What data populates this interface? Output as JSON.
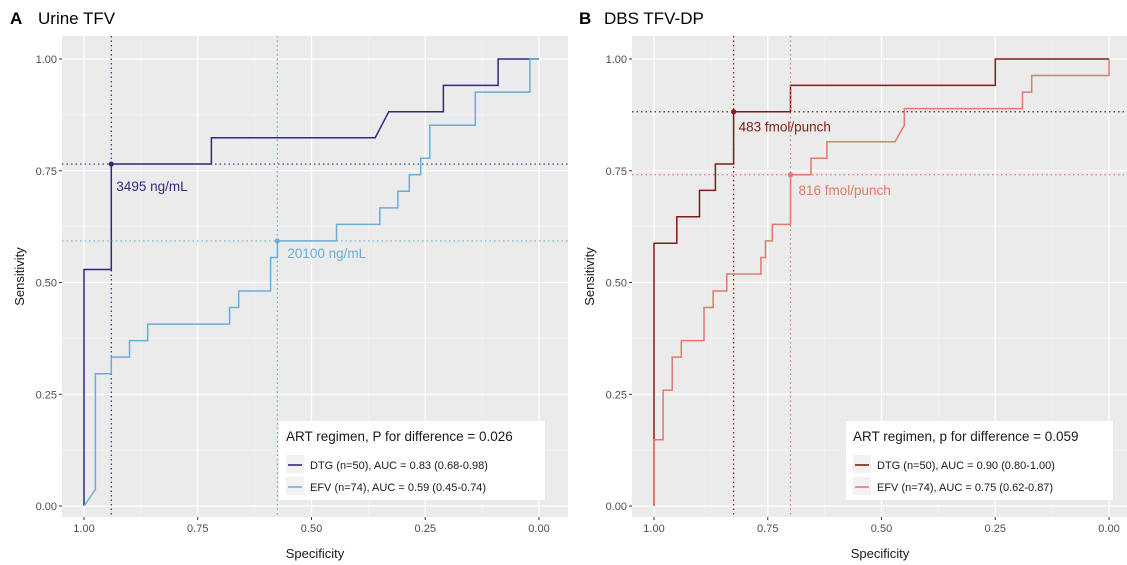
{
  "chart_data": [
    {
      "panel_letter": "A",
      "title": "Urine TFV",
      "type": "line",
      "xlabel": "Specificity",
      "ylabel": "Sensitivity",
      "x_reversed": true,
      "xlim": [
        1.0,
        0.0
      ],
      "ylim": [
        0.0,
        1.0
      ],
      "x_ticks": [
        "1.00",
        "0.75",
        "0.50",
        "0.25",
        "0.00"
      ],
      "y_ticks": [
        "0.00",
        "0.25",
        "0.50",
        "0.75",
        "1.00"
      ],
      "grid": true,
      "background": "#ebebeb",
      "legend": {
        "position": "bottom-right",
        "title": "ART regimen, P for difference = 0.026",
        "entries": [
          "DTG (n=50), AUC = 0.83 (0.68-0.98)",
          "EFV (n=74), AUC = 0.59 (0.45-0.74)"
        ]
      },
      "series": [
        {
          "name": "DTG (n=50), AUC = 0.83 (0.68-0.98)",
          "color": "#2e2a82",
          "points": [
            [
              1.0,
              0.0
            ],
            [
              1.0,
              0.529
            ],
            [
              0.94,
              0.529
            ],
            [
              0.94,
              0.765
            ],
            [
              0.72,
              0.765
            ],
            [
              0.72,
              0.824
            ],
            [
              0.36,
              0.824
            ],
            [
              0.33,
              0.882
            ],
            [
              0.21,
              0.882
            ],
            [
              0.21,
              0.941
            ],
            [
              0.09,
              0.941
            ],
            [
              0.09,
              1.0
            ],
            [
              0.0,
              1.0
            ]
          ],
          "cutoff": {
            "specificity": 0.94,
            "sensitivity": 0.765,
            "label": "3495 ng/mL"
          }
        },
        {
          "name": "EFV (n=74), AUC = 0.59 (0.45-0.74)",
          "color": "#6aaed6",
          "points": [
            [
              1.0,
              0.0
            ],
            [
              0.975,
              0.037
            ],
            [
              0.975,
              0.296
            ],
            [
              0.94,
              0.296
            ],
            [
              0.94,
              0.333
            ],
            [
              0.9,
              0.333
            ],
            [
              0.9,
              0.37
            ],
            [
              0.86,
              0.37
            ],
            [
              0.86,
              0.407
            ],
            [
              0.68,
              0.407
            ],
            [
              0.68,
              0.444
            ],
            [
              0.66,
              0.444
            ],
            [
              0.66,
              0.481
            ],
            [
              0.59,
              0.481
            ],
            [
              0.59,
              0.556
            ],
            [
              0.575,
              0.556
            ],
            [
              0.575,
              0.593
            ],
            [
              0.445,
              0.593
            ],
            [
              0.445,
              0.63
            ],
            [
              0.35,
              0.63
            ],
            [
              0.35,
              0.667
            ],
            [
              0.31,
              0.667
            ],
            [
              0.31,
              0.704
            ],
            [
              0.285,
              0.704
            ],
            [
              0.285,
              0.741
            ],
            [
              0.26,
              0.741
            ],
            [
              0.26,
              0.778
            ],
            [
              0.24,
              0.778
            ],
            [
              0.24,
              0.852
            ],
            [
              0.14,
              0.852
            ],
            [
              0.14,
              0.926
            ],
            [
              0.02,
              0.926
            ],
            [
              0.02,
              1.0
            ],
            [
              0.0,
              1.0
            ]
          ],
          "cutoff": {
            "specificity": 0.575,
            "sensitivity": 0.593,
            "label": "20100 ng/mL"
          }
        }
      ]
    },
    {
      "panel_letter": "B",
      "title": "DBS TFV-DP",
      "type": "line",
      "xlabel": "Specificity",
      "ylabel": "Sensitivity",
      "x_reversed": true,
      "xlim": [
        1.0,
        0.0
      ],
      "ylim": [
        0.0,
        1.0
      ],
      "x_ticks": [
        "1.00",
        "0.75",
        "0.50",
        "0.25",
        "0.00"
      ],
      "y_ticks": [
        "0.00",
        "0.25",
        "0.50",
        "0.75",
        "1.00"
      ],
      "grid": true,
      "background": "#ebebeb",
      "legend": {
        "position": "bottom-right",
        "title": "ART regimen, p for difference = 0.059",
        "entries": [
          "DTG (n=50), AUC = 0.90 (0.80-1.00)",
          "EFV (n=74), AUC = 0.75 (0.62-0.87)"
        ]
      },
      "series": [
        {
          "name": "DTG (n=50), AUC = 0.90 (0.80-1.00)",
          "color": "#7f1d14",
          "points": [
            [
              1.0,
              0.0
            ],
            [
              1.0,
              0.588
            ],
            [
              0.95,
              0.588
            ],
            [
              0.95,
              0.647
            ],
            [
              0.9,
              0.647
            ],
            [
              0.9,
              0.706
            ],
            [
              0.865,
              0.706
            ],
            [
              0.865,
              0.765
            ],
            [
              0.825,
              0.765
            ],
            [
              0.825,
              0.882
            ],
            [
              0.7,
              0.882
            ],
            [
              0.7,
              0.941
            ],
            [
              0.25,
              0.941
            ],
            [
              0.25,
              1.0
            ],
            [
              0.0,
              1.0
            ]
          ],
          "cutoff": {
            "specificity": 0.825,
            "sensitivity": 0.882,
            "label": "483 fmol/punch"
          }
        },
        {
          "name": "EFV (n=74), AUC = 0.75 (0.62-0.87)",
          "color": "#e2796a",
          "points": [
            [
              1.0,
              0.0
            ],
            [
              1.0,
              0.148
            ],
            [
              0.98,
              0.148
            ],
            [
              0.98,
              0.259
            ],
            [
              0.96,
              0.259
            ],
            [
              0.96,
              0.333
            ],
            [
              0.94,
              0.333
            ],
            [
              0.94,
              0.37
            ],
            [
              0.89,
              0.37
            ],
            [
              0.89,
              0.444
            ],
            [
              0.87,
              0.444
            ],
            [
              0.87,
              0.481
            ],
            [
              0.84,
              0.481
            ],
            [
              0.84,
              0.519
            ],
            [
              0.765,
              0.519
            ],
            [
              0.765,
              0.556
            ],
            [
              0.755,
              0.556
            ],
            [
              0.755,
              0.593
            ],
            [
              0.74,
              0.593
            ],
            [
              0.74,
              0.63
            ],
            [
              0.7,
              0.63
            ],
            [
              0.7,
              0.741
            ],
            [
              0.655,
              0.741
            ],
            [
              0.655,
              0.778
            ],
            [
              0.62,
              0.778
            ],
            [
              0.62,
              0.815
            ],
            [
              0.47,
              0.815
            ],
            [
              0.45,
              0.852
            ],
            [
              0.45,
              0.889
            ],
            [
              0.19,
              0.889
            ],
            [
              0.19,
              0.926
            ],
            [
              0.17,
              0.926
            ],
            [
              0.17,
              0.963
            ],
            [
              0.0,
              0.963
            ],
            [
              0.0,
              1.0
            ]
          ],
          "cutoff": {
            "specificity": 0.7,
            "sensitivity": 0.741,
            "label": "816 fmol/punch"
          }
        }
      ]
    }
  ]
}
